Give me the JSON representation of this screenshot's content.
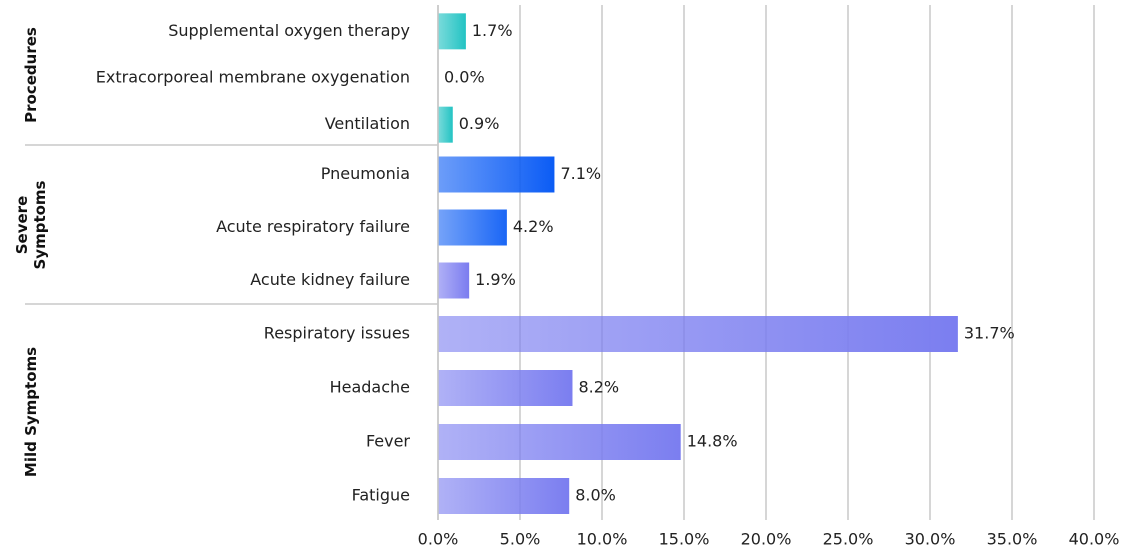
{
  "chart_data": {
    "type": "bar",
    "orientation": "horizontal",
    "grid": true,
    "xlim": [
      0,
      40
    ],
    "xticks": [
      {
        "value": 0,
        "label": "0.0%"
      },
      {
        "value": 5,
        "label": "5.0%"
      },
      {
        "value": 10,
        "label": "10.0%"
      },
      {
        "value": 15,
        "label": "15.0%"
      },
      {
        "value": 20,
        "label": "20.0%"
      },
      {
        "value": 25,
        "label": "25.0%"
      },
      {
        "value": 30,
        "label": "30.0%"
      },
      {
        "value": 35,
        "label": "35.0%"
      },
      {
        "value": 40,
        "label": "40.0%"
      }
    ],
    "groups": [
      {
        "name": "Procedures",
        "categories": [
          "Supplemental oxygen therapy",
          "Extracorporeal membrane oxygenation",
          "Ventilation"
        ],
        "values": [
          1.7,
          0.0,
          0.9
        ],
        "value_labels": [
          "1.7%",
          "0.0%",
          "0.9%"
        ],
        "colors": [
          "#22c3c3",
          "#22c3c3",
          "#22c3c3"
        ]
      },
      {
        "name": "Severe Symptoms",
        "categories": [
          "Pneumonia",
          "Acute respiratory failure",
          "Acute kidney failure"
        ],
        "values": [
          7.1,
          4.2,
          1.9
        ],
        "value_labels": [
          "7.1%",
          "4.2%",
          "1.9%"
        ],
        "colors": [
          "#0b5cf5",
          "#1a66f5",
          "#7b7cf0"
        ]
      },
      {
        "name": "Mild Symptoms",
        "categories": [
          "Respiratory issues",
          "Headache",
          "Fever",
          "Fatigue"
        ],
        "values": [
          31.7,
          8.2,
          14.8,
          8.0
        ],
        "value_labels": [
          "31.7%",
          "8.2%",
          "14.8%",
          "8.0%"
        ],
        "colors": [
          "#7b7ef0",
          "#7b7ef0",
          "#7b7ef0",
          "#7b7ef0"
        ]
      }
    ]
  }
}
